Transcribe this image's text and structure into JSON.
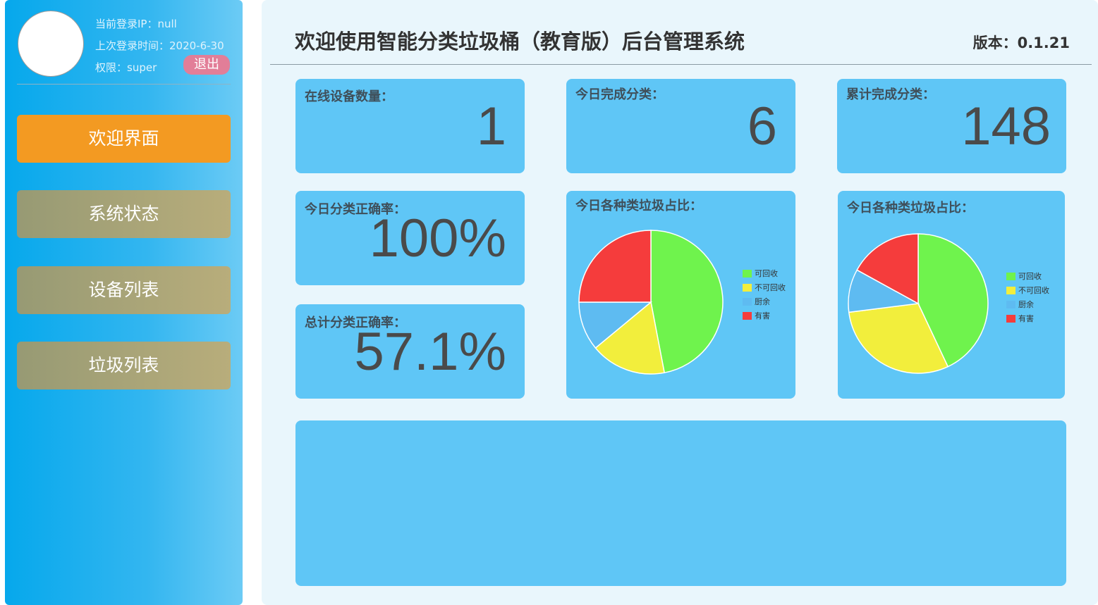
{
  "sidebar": {
    "login_ip": "当前登录IP：null",
    "last_login": "上次登录时间：2020-6-30",
    "permission": "权限：super",
    "logout_label": "退出",
    "nav": [
      {
        "label": "欢迎界面",
        "active": true
      },
      {
        "label": "系统状态",
        "active": false
      },
      {
        "label": "设备列表",
        "active": false
      },
      {
        "label": "垃圾列表",
        "active": false
      }
    ]
  },
  "header": {
    "title": "欢迎使用智能分类垃圾桶（教育版）后台管理系统",
    "version": "版本：0.1.21"
  },
  "stats": {
    "online_devices": {
      "label": "在线设备数量：",
      "value": "1"
    },
    "today_done": {
      "label": "今日完成分类：",
      "value": "6"
    },
    "total_done": {
      "label": "累计完成分类：",
      "value": "148"
    },
    "today_accuracy": {
      "label": "今日分类正确率：",
      "value": "100%"
    },
    "total_accuracy": {
      "label": "总计分类正确率：",
      "value": "57.1%"
    }
  },
  "chart_data": [
    {
      "type": "pie",
      "title": "今日各种类垃圾占比：",
      "categories": [
        "可回收",
        "不可回收",
        "厨余",
        "有害"
      ],
      "values": [
        47,
        17,
        11,
        25
      ],
      "colors": [
        "#6ff34d",
        "#f2ee3c",
        "#5ebbf1",
        "#f53c3c"
      ],
      "legend": "right"
    },
    {
      "type": "pie",
      "title": "今日各种类垃圾占比：",
      "categories": [
        "可回收",
        "不可回收",
        "厨余",
        "有害"
      ],
      "values": [
        43,
        30,
        10,
        17
      ],
      "colors": [
        "#6ff34d",
        "#f2ee3c",
        "#5ebbf1",
        "#f53c3c"
      ],
      "legend": "right"
    }
  ],
  "colors": {
    "sidebar_gradient_start": "#06a8ec",
    "active_nav": "#f39a22",
    "inactive_nav": "#a7a477",
    "card": "#5fc6f6",
    "main_bg": "#e9f6fc"
  }
}
